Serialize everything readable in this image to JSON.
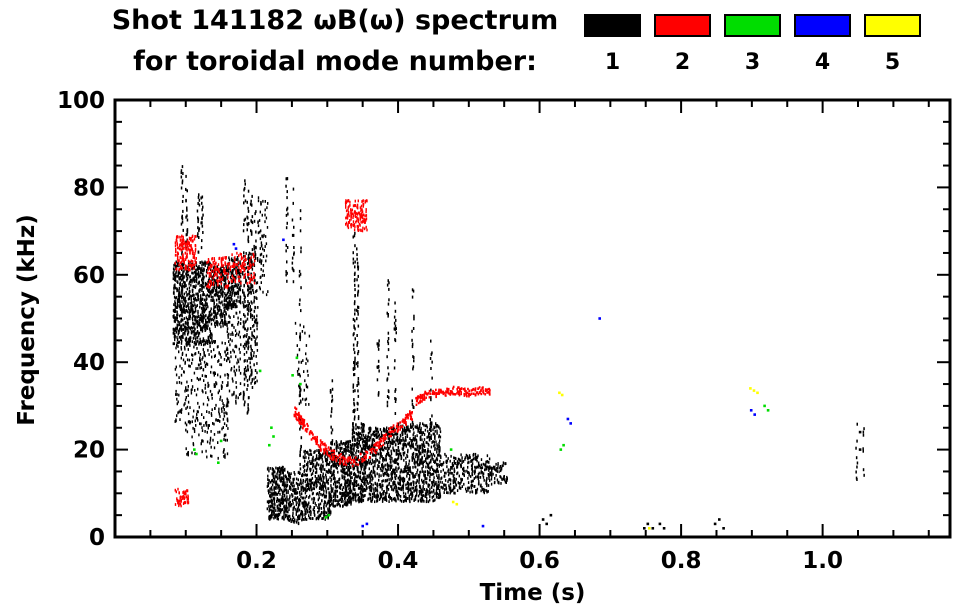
{
  "title": {
    "line1": "Shot 141182 ωB(ω) spectrum",
    "line2": "for toroidal mode number:"
  },
  "chart_data": {
    "type": "scatter",
    "title": "Shot 141182 ωB(ω) spectrum",
    "subtitle": "for toroidal mode number:",
    "xlabel": "Time (s)",
    "ylabel": "Frequency (kHz)",
    "xlim": [
      0.0,
      1.18
    ],
    "ylim": [
      0,
      100
    ],
    "xticks": [
      0.2,
      0.4,
      0.6,
      0.8,
      1.0
    ],
    "xtick_labels": [
      "0.2",
      "0.4",
      "0.6",
      "0.8",
      "1.0"
    ],
    "x_minor_step": 0.05,
    "yticks": [
      0,
      20,
      40,
      60,
      80,
      100
    ],
    "y_minor_step": 5,
    "grid": false,
    "legend_position": "top-right",
    "modes": [
      {
        "number": 1,
        "color": "#000000"
      },
      {
        "number": 2,
        "color": "#ff0000"
      },
      {
        "number": 3,
        "color": "#00dd00"
      },
      {
        "number": 4,
        "color": "#0000ff"
      },
      {
        "number": 5,
        "color": "#ffff00"
      }
    ],
    "features": [
      {
        "mode": 1,
        "kind": "box",
        "t": [
          0.082,
          0.138
        ],
        "f": [
          44,
          63
        ],
        "n": 800
      },
      {
        "mode": 1,
        "kind": "box",
        "t": [
          0.138,
          0.158
        ],
        "f": [
          48,
          62
        ],
        "n": 220
      },
      {
        "mode": 1,
        "kind": "vline",
        "t": 0.095,
        "f": [
          64,
          85
        ],
        "n": 22
      },
      {
        "mode": 1,
        "kind": "vline",
        "t": 0.101,
        "f": [
          66,
          83
        ],
        "n": 18
      },
      {
        "mode": 1,
        "kind": "vline",
        "t": 0.118,
        "f": [
          64,
          80
        ],
        "n": 18
      },
      {
        "mode": 1,
        "kind": "vline",
        "t": 0.123,
        "f": [
          63,
          78
        ],
        "n": 14
      },
      {
        "mode": 1,
        "kind": "box",
        "t": [
          0.085,
          0.16
        ],
        "f": [
          26,
          45
        ],
        "n": 260
      },
      {
        "mode": 1,
        "kind": "box",
        "t": [
          0.1,
          0.16
        ],
        "f": [
          18,
          27
        ],
        "n": 80
      },
      {
        "mode": 1,
        "kind": "box",
        "t": [
          0.158,
          0.178
        ],
        "f": [
          52,
          64
        ],
        "n": 200
      },
      {
        "mode": 1,
        "kind": "box",
        "t": [
          0.158,
          0.178
        ],
        "f": [
          30,
          52
        ],
        "n": 90
      },
      {
        "mode": 1,
        "kind": "vline",
        "t": 0.183,
        "f": [
          30,
          82
        ],
        "n": 45
      },
      {
        "mode": 1,
        "kind": "vline",
        "t": 0.188,
        "f": [
          28,
          80
        ],
        "n": 45
      },
      {
        "mode": 1,
        "kind": "vline",
        "t": 0.193,
        "f": [
          32,
          78
        ],
        "n": 40
      },
      {
        "mode": 1,
        "kind": "vline",
        "t": 0.198,
        "f": [
          35,
          75
        ],
        "n": 30
      },
      {
        "mode": 1,
        "kind": "box",
        "t": [
          0.18,
          0.202
        ],
        "f": [
          35,
          65
        ],
        "n": 150
      },
      {
        "mode": 1,
        "kind": "box",
        "t": [
          0.202,
          0.216
        ],
        "f": [
          55,
          78
        ],
        "n": 60
      },
      {
        "mode": 1,
        "kind": "vline",
        "t": 0.243,
        "f": [
          55,
          83
        ],
        "n": 20
      },
      {
        "mode": 1,
        "kind": "vline",
        "t": 0.252,
        "f": [
          58,
          80
        ],
        "n": 15
      },
      {
        "mode": 1,
        "kind": "vline",
        "t": 0.262,
        "f": [
          50,
          75
        ],
        "n": 12
      },
      {
        "mode": 1,
        "kind": "box",
        "t": [
          0.255,
          0.275
        ],
        "f": [
          30,
          50
        ],
        "n": 40
      },
      {
        "mode": 1,
        "kind": "box",
        "t": [
          0.215,
          0.24
        ],
        "f": [
          4,
          16
        ],
        "n": 260
      },
      {
        "mode": 1,
        "kind": "box",
        "t": [
          0.24,
          0.265
        ],
        "f": [
          3,
          15
        ],
        "n": 200
      },
      {
        "mode": 1,
        "kind": "vline",
        "t": 0.262,
        "f": [
          15,
          47
        ],
        "n": 30
      },
      {
        "mode": 1,
        "kind": "box",
        "t": [
          0.265,
          0.305
        ],
        "f": [
          4,
          20
        ],
        "n": 420
      },
      {
        "mode": 1,
        "kind": "vline",
        "t": 0.306,
        "f": [
          20,
          37
        ],
        "n": 18
      },
      {
        "mode": 1,
        "kind": "box",
        "t": [
          0.305,
          0.335
        ],
        "f": [
          7,
          22
        ],
        "n": 380
      },
      {
        "mode": 1,
        "kind": "vline",
        "t": 0.338,
        "f": [
          22,
          70
        ],
        "n": 60
      },
      {
        "mode": 1,
        "kind": "vline",
        "t": 0.343,
        "f": [
          20,
          66
        ],
        "n": 50
      },
      {
        "mode": 1,
        "kind": "box",
        "t": [
          0.335,
          0.355
        ],
        "f": [
          8,
          26
        ],
        "n": 300
      },
      {
        "mode": 1,
        "kind": "box",
        "t": [
          0.355,
          0.4
        ],
        "f": [
          8,
          25
        ],
        "n": 520
      },
      {
        "mode": 1,
        "kind": "vline",
        "t": 0.372,
        "f": [
          25,
          45
        ],
        "n": 16
      },
      {
        "mode": 1,
        "kind": "vline",
        "t": 0.386,
        "f": [
          30,
          62
        ],
        "n": 25
      },
      {
        "mode": 1,
        "kind": "vline",
        "t": 0.396,
        "f": [
          28,
          55
        ],
        "n": 20
      },
      {
        "mode": 1,
        "kind": "box",
        "t": [
          0.4,
          0.46
        ],
        "f": [
          8,
          26
        ],
        "n": 700
      },
      {
        "mode": 1,
        "kind": "vline",
        "t": 0.421,
        "f": [
          26,
          57
        ],
        "n": 22
      },
      {
        "mode": 1,
        "kind": "vline",
        "t": 0.447,
        "f": [
          26,
          48
        ],
        "n": 14
      },
      {
        "mode": 1,
        "kind": "box",
        "t": [
          0.46,
          0.53
        ],
        "f": [
          10,
          19
        ],
        "n": 300
      },
      {
        "mode": 1,
        "kind": "box",
        "t": [
          0.53,
          0.555
        ],
        "f": [
          12,
          17
        ],
        "n": 60
      },
      {
        "mode": 1,
        "kind": "points",
        "pts": [
          [
            0.605,
            4
          ],
          [
            0.61,
            3
          ],
          [
            0.616,
            5
          ],
          [
            0.748,
            2
          ],
          [
            0.753,
            3
          ],
          [
            0.76,
            2
          ],
          [
            0.77,
            3
          ],
          [
            0.776,
            2
          ],
          [
            0.848,
            3
          ],
          [
            0.854,
            4
          ],
          [
            0.86,
            2
          ]
        ]
      },
      {
        "mode": 1,
        "kind": "vline",
        "t": 1.048,
        "f": [
          13,
          26
        ],
        "n": 9
      },
      {
        "mode": 1,
        "kind": "vline",
        "t": 1.058,
        "f": [
          14,
          25
        ],
        "n": 7
      },
      {
        "mode": 1,
        "kind": "points",
        "pts": [
          [
            1.053,
            20
          ],
          [
            1.053,
            24
          ]
        ]
      },
      {
        "mode": 2,
        "kind": "box",
        "t": [
          0.085,
          0.115
        ],
        "f": [
          61,
          69
        ],
        "n": 170
      },
      {
        "mode": 2,
        "kind": "box",
        "t": [
          0.085,
          0.105
        ],
        "f": [
          7,
          11
        ],
        "n": 55
      },
      {
        "mode": 2,
        "kind": "box",
        "t": [
          0.13,
          0.165
        ],
        "f": [
          57,
          64
        ],
        "n": 110
      },
      {
        "mode": 2,
        "kind": "box",
        "t": [
          0.165,
          0.198
        ],
        "f": [
          58,
          65
        ],
        "n": 90
      },
      {
        "mode": 2,
        "kind": "box",
        "t": [
          0.325,
          0.357
        ],
        "f": [
          70,
          77
        ],
        "n": 140
      },
      {
        "mode": 2,
        "kind": "trace",
        "pts": [
          [
            0.253,
            29
          ],
          [
            0.27,
            25
          ],
          [
            0.29,
            21
          ],
          [
            0.31,
            18.5
          ],
          [
            0.33,
            17
          ],
          [
            0.35,
            18
          ],
          [
            0.37,
            20.5
          ],
          [
            0.39,
            24
          ],
          [
            0.405,
            26
          ],
          [
            0.42,
            28
          ]
        ],
        "n": 280,
        "jf": 1.2
      },
      {
        "mode": 2,
        "kind": "trace",
        "pts": [
          [
            0.425,
            31
          ],
          [
            0.44,
            32.5
          ],
          [
            0.46,
            33
          ],
          [
            0.48,
            33.5
          ],
          [
            0.5,
            33
          ],
          [
            0.515,
            33.5
          ],
          [
            0.53,
            33
          ]
        ],
        "n": 170,
        "jf": 0.9
      },
      {
        "mode": 3,
        "kind": "points",
        "pts": [
          [
            0.112,
            20
          ],
          [
            0.115,
            19
          ],
          [
            0.146,
            17
          ],
          [
            0.15,
            22
          ],
          [
            0.205,
            38
          ],
          [
            0.218,
            21
          ],
          [
            0.221,
            25
          ],
          [
            0.224,
            23
          ],
          [
            0.251,
            37
          ],
          [
            0.257,
            41
          ],
          [
            0.262,
            35
          ],
          [
            0.298,
            4.5
          ],
          [
            0.302,
            5
          ],
          [
            0.475,
            20
          ],
          [
            0.63,
            20
          ],
          [
            0.634,
            21
          ],
          [
            0.918,
            30
          ],
          [
            0.923,
            29
          ]
        ]
      },
      {
        "mode": 4,
        "kind": "points",
        "pts": [
          [
            0.168,
            67
          ],
          [
            0.171,
            66
          ],
          [
            0.238,
            68
          ],
          [
            0.35,
            2.5
          ],
          [
            0.356,
            3
          ],
          [
            0.52,
            2.5
          ],
          [
            0.64,
            27
          ],
          [
            0.644,
            26
          ],
          [
            0.685,
            50
          ],
          [
            0.899,
            29
          ],
          [
            0.904,
            28
          ]
        ]
      },
      {
        "mode": 5,
        "kind": "points",
        "pts": [
          [
            0.478,
            8
          ],
          [
            0.483,
            7.5
          ],
          [
            0.628,
            33
          ],
          [
            0.632,
            32.5
          ],
          [
            0.755,
            2
          ],
          [
            0.898,
            34
          ],
          [
            0.903,
            33.5
          ],
          [
            0.908,
            33
          ]
        ]
      }
    ]
  }
}
